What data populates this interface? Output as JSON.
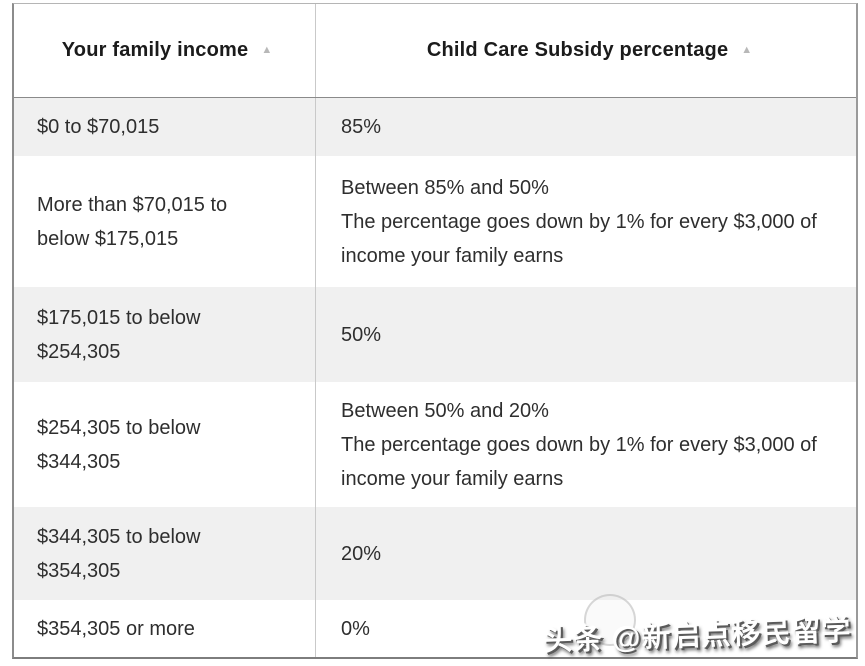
{
  "table": {
    "columns": [
      {
        "label": "Your family income",
        "sort_icon": "▲"
      },
      {
        "label": "Child Care Subsidy percentage",
        "sort_icon": "▲"
      }
    ],
    "rows": [
      {
        "income": "$0 to $70,015",
        "subsidy": "85%",
        "note": ""
      },
      {
        "income": "More than $70,015 to below $175,015",
        "subsidy": "Between 85% and 50%",
        "note": "The percentage goes down by 1% for every $3,000 of income your family earns"
      },
      {
        "income": "$175,015 to below $254,305",
        "subsidy": "50%",
        "note": ""
      },
      {
        "income": "$254,305 to below $344,305",
        "subsidy": "Between 50% and 20%",
        "note": "The percentage goes down by 1% for every $3,000 of income your family earns"
      },
      {
        "income": "$344,305 to below $354,305",
        "subsidy": "20%",
        "note": ""
      },
      {
        "income": "$354,305 or more",
        "subsidy": "0%",
        "note": ""
      }
    ]
  },
  "watermark": {
    "text": "头条 @新启点移民留学"
  },
  "colors": {
    "row_alt_bg": "#f0f0f0",
    "divider": "#c9c9c9",
    "outer_border": "#8c8c8c",
    "text": "#2e2e2e",
    "sort_icon": "#b8b8b8"
  }
}
